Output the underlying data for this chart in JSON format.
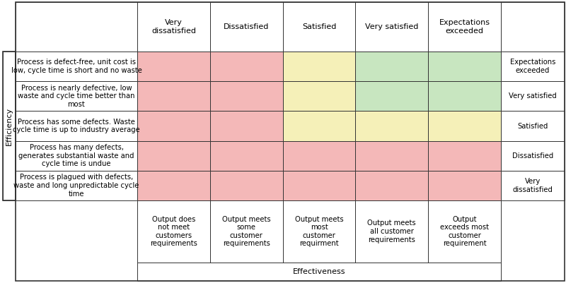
{
  "col_headers": [
    "Very\ndissatisfied",
    "Dissatisfied",
    "Satisfied",
    "Very satisfied",
    "Expectations\nexceeded"
  ],
  "row_headers": [
    "Process is defect-free, unit cost is\nlow, cycle time is short and no waste",
    "Process is nearly defective, low\nwaste and cycle time better than\nmost",
    "Process has some defects. Waste\ncycle time is up to industry average",
    "Process has many defects,\ngenerates substantial waste and\ncycle time is undue",
    "Process is plagued with defects,\nwaste and long unpredictable cycle\ntime"
  ],
  "row_labels": [
    "Expectations\nexceeded",
    "Very satisfied",
    "Satisfied",
    "Dissatisfied",
    "Very\ndissatisfied"
  ],
  "col_footers": [
    "Output does\nnot meet\ncustomers\nrequirements",
    "Output meets\nsome\ncustomer\nrequirements",
    "Output meets\nmost\ncustomer\nrequirment",
    "Output meets\nall customer\nrequirements",
    "Output\nexceeds most\ncustomer\nrequirement"
  ],
  "effectiveness_label": "Effectiveness",
  "efficiency_label": "Efficiency",
  "cell_colors": [
    [
      "#f4b8b8",
      "#f4b8b8",
      "#f5f0b8",
      "#c8e6c0",
      "#c8e6c0"
    ],
    [
      "#f4b8b8",
      "#f4b8b8",
      "#f5f0b8",
      "#c8e6c0",
      "#c8e6c0"
    ],
    [
      "#f4b8b8",
      "#f4b8b8",
      "#f5f0b8",
      "#f5f0b8",
      "#f5f0b8"
    ],
    [
      "#f4b8b8",
      "#f4b8b8",
      "#f4b8b8",
      "#f4b8b8",
      "#f4b8b8"
    ],
    [
      "#f4b8b8",
      "#f4b8b8",
      "#f4b8b8",
      "#f4b8b8",
      "#f4b8b8"
    ]
  ],
  "border_color": "#333333",
  "text_color": "#000000",
  "bg_color": "#ffffff",
  "font_size": 7.2,
  "header_font_size": 8.0,
  "fig_width": 8.0,
  "fig_height": 4.01,
  "dpi": 100
}
